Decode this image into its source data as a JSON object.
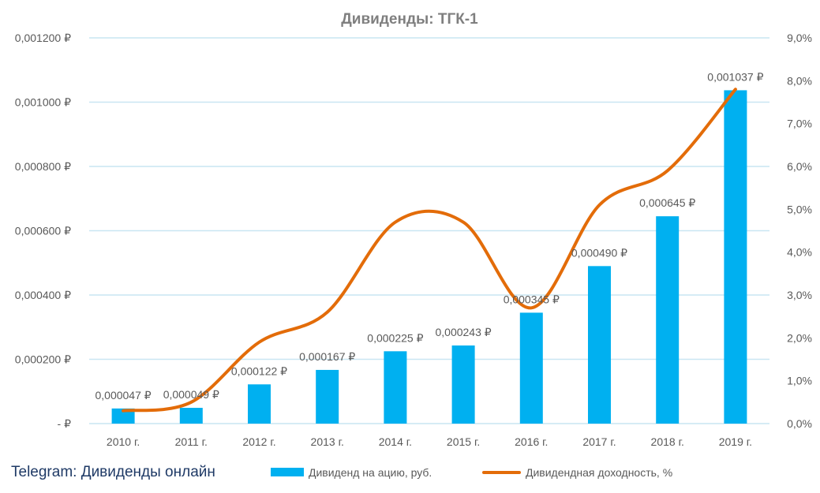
{
  "chart_data": {
    "type": "bar+line",
    "title": "Дивиденды: ТГК-1",
    "categories": [
      "2010 г.",
      "2011 г.",
      "2012 г.",
      "2013 г.",
      "2014 г.",
      "2015 г.",
      "2016 г.",
      "2017 г.",
      "2018 г.",
      "2019 г."
    ],
    "series": [
      {
        "name": "Дивиденд на ацию, руб.",
        "type": "bar",
        "axis": "left",
        "color": "#00b0f0",
        "values": [
          4.7e-05,
          4.9e-05,
          0.000122,
          0.000167,
          0.000225,
          0.000243,
          0.000345,
          0.00049,
          0.000645,
          0.001037
        ],
        "labels": [
          "0,000047 ₽",
          "0,000049 ₽",
          "0,000122 ₽",
          "0,000167 ₽",
          "0,000225 ₽",
          "0,000243 ₽",
          "0,000345 ₽",
          "0,000490 ₽",
          "0,000645 ₽",
          "0,001037 ₽"
        ]
      },
      {
        "name": "Дивидендная доходность, %",
        "type": "line",
        "smooth": true,
        "axis": "right",
        "color": "#e36c09",
        "values": [
          0.3,
          0.5,
          1.9,
          2.6,
          4.7,
          4.7,
          2.7,
          5.1,
          5.9,
          7.8
        ]
      }
    ],
    "y_left": {
      "min": 0,
      "max": 0.0012,
      "step": 0.0002,
      "tick_labels": [
        "-   ₽",
        "0,000200 ₽",
        "0,000400 ₽",
        "0,000600 ₽",
        "0,000800 ₽",
        "0,001000 ₽",
        "0,001200 ₽"
      ]
    },
    "y_right": {
      "min": 0,
      "max": 9,
      "step": 1,
      "tick_labels": [
        "0,0%",
        "1,0%",
        "2,0%",
        "3,0%",
        "4,0%",
        "5,0%",
        "6,0%",
        "7,0%",
        "8,0%",
        "9,0%"
      ]
    },
    "grid": true,
    "gridline_color": "#c9e6f2",
    "legend": {
      "position": "bottom",
      "entries": [
        "Дивиденд на ацию, руб.",
        "Дивидендная доходность, %"
      ]
    }
  },
  "source": {
    "text": "Telegram: Дивиденды онлайн"
  }
}
